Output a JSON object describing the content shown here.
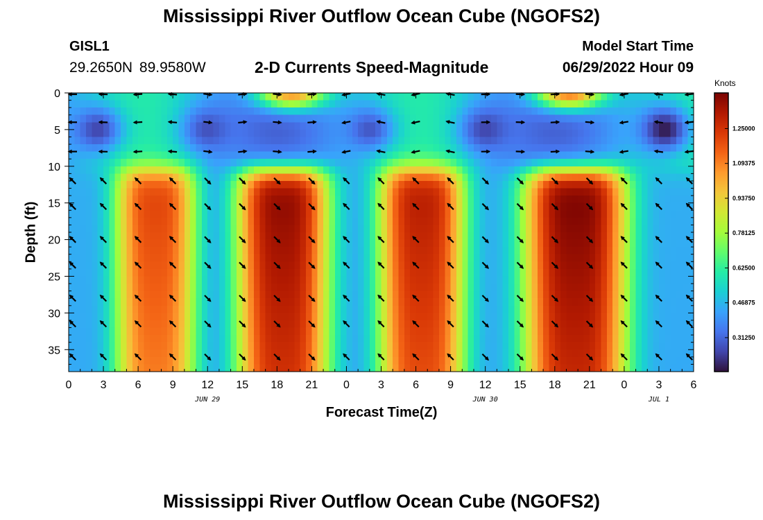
{
  "header": {
    "title": "Mississippi River Outflow Ocean Cube (NGOFS2)",
    "station": "GISL1",
    "coordinates": "29.2650N  89.9580W",
    "subtitle": "2-D Currents Speed-Magnitude",
    "model_start_label": "Model Start Time",
    "model_start_value": "06/29/2022 Hour 09"
  },
  "footer": {
    "title": "Mississippi River Outflow Ocean Cube (NGOFS2)"
  },
  "chart_data": {
    "type": "heatmap",
    "title": "2-D Currents Speed-Magnitude",
    "xlabel": "Forecast Time(Z)",
    "ylabel": "Depth (ft)",
    "xlim": [
      0,
      54
    ],
    "ylim": [
      0,
      38
    ],
    "y_inverted": true,
    "x_ticks": [
      0,
      3,
      6,
      9,
      12,
      15,
      18,
      21,
      24,
      27,
      30,
      33,
      36,
      39,
      42,
      45,
      48,
      51,
      54
    ],
    "x_tick_labels": [
      "0",
      "3",
      "6",
      "9",
      "12",
      "15",
      "18",
      "21",
      "0",
      "3",
      "6",
      "9",
      "12",
      "15",
      "18",
      "21",
      "0",
      "3",
      "6"
    ],
    "y_ticks": [
      0,
      5,
      10,
      15,
      20,
      25,
      30,
      35
    ],
    "y_tick_labels": [
      "0",
      "5",
      "10",
      "15",
      "20",
      "25",
      "30",
      "35"
    ],
    "date_labels": [
      {
        "x": 12,
        "text": "JUN 29"
      },
      {
        "x": 36,
        "text": "JUN 30"
      },
      {
        "x": 51,
        "text": "JUL 1"
      }
    ],
    "colorbar": {
      "title": "Knots",
      "range": [
        0.16,
        1.41
      ],
      "ticks": [
        0.3125,
        0.46875,
        0.625,
        0.78125,
        0.9375,
        1.09375,
        1.25
      ],
      "tick_labels": [
        "0.31250",
        "0.46875",
        "0.62500",
        "0.78125",
        "0.93750",
        "1.09375",
        "1.25000"
      ],
      "colors": [
        "#30123b",
        "#4145ab",
        "#4675ed",
        "#39a2fc",
        "#1bcfd4",
        "#24eca6",
        "#61fc6c",
        "#a4fc3b",
        "#d1e834",
        "#f3c63a",
        "#fe9b2d",
        "#f36315",
        "#d93806",
        "#b11901",
        "#7a0402"
      ]
    },
    "speed_bands": [
      {
        "center": 7.5,
        "peak": 1.2,
        "start": 4,
        "end": 11
      },
      {
        "center": 18.5,
        "peak": 1.37,
        "start": 14.5,
        "end": 22.5
      },
      {
        "center": 30.5,
        "peak": 1.3,
        "start": 27.5,
        "end": 35
      },
      {
        "center": 43.8,
        "peak": 1.4,
        "start": 39.5,
        "end": 48.5
      }
    ],
    "surface_peaks": [
      {
        "center": 19.2,
        "peak": 1.25
      },
      {
        "center": 43.2,
        "peak": 1.3
      }
    ],
    "low_speed_cores": [
      {
        "center": 2.5,
        "depth": 5,
        "value": 0.25
      },
      {
        "center": 12,
        "depth": 5,
        "value": 0.27
      },
      {
        "center": 26,
        "depth": 5,
        "value": 0.28
      },
      {
        "center": 36,
        "depth": 5,
        "value": 0.25
      },
      {
        "center": 51.5,
        "depth": 5,
        "value": 0.17
      }
    ],
    "arrow_depths": [
      0,
      4,
      8,
      12,
      15.5,
      20,
      23.5,
      28,
      31.5,
      36
    ],
    "arrow_columns": [
      0,
      3,
      6,
      9,
      12,
      15,
      18,
      21,
      24,
      27,
      30,
      33,
      36,
      39,
      42,
      45,
      48,
      51,
      54
    ]
  }
}
